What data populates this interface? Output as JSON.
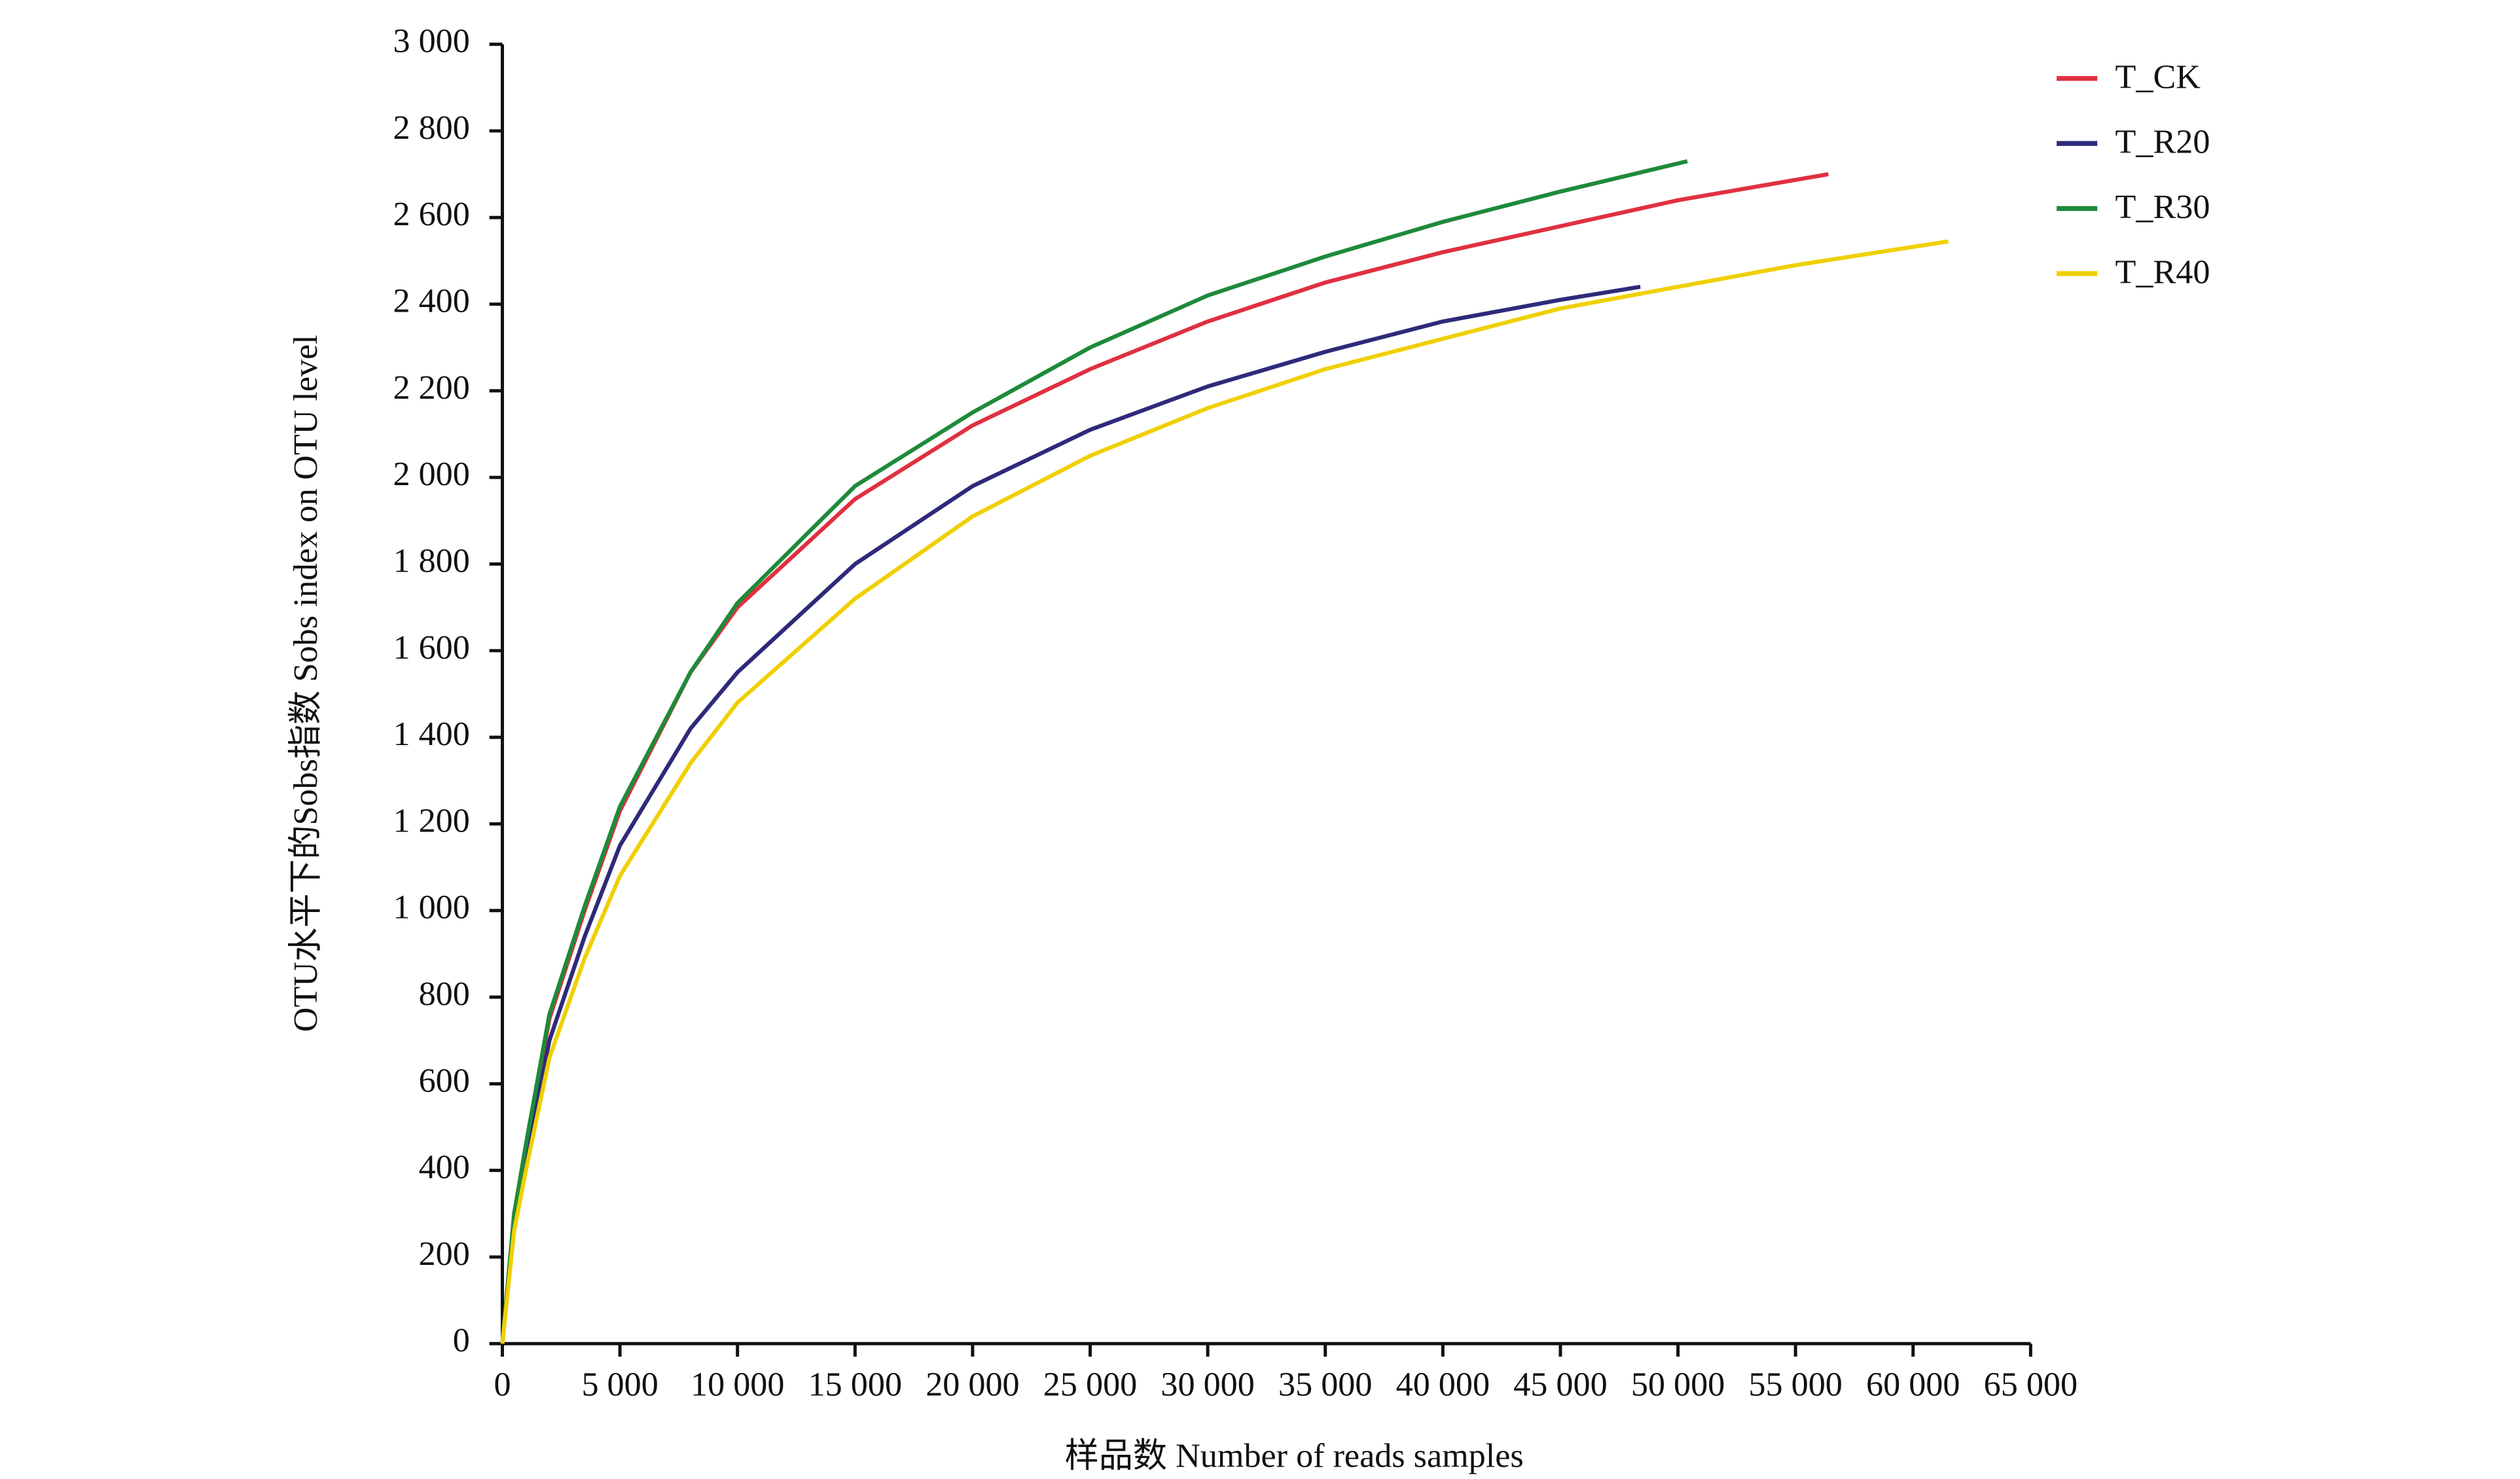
{
  "chart_data": {
    "type": "line",
    "xlabel": "样品数 Number of reads samples",
    "ylabel": "OTU水平下的Sobs指数 Sobs index on OTU level",
    "xlim": [
      0,
      65000
    ],
    "ylim": [
      0,
      3000
    ],
    "xticks": [
      0,
      {
        "value": 5000,
        "label": "5 000"
      },
      {
        "value": 10000,
        "label": "10 000"
      },
      {
        "value": 15000,
        "label": "15 000"
      },
      {
        "value": 20000,
        "label": "20 000"
      },
      {
        "value": 25000,
        "label": "25 000"
      },
      {
        "value": 30000,
        "label": "30 000"
      },
      {
        "value": 35000,
        "label": "35 000"
      },
      {
        "value": 40000,
        "label": "40 000"
      },
      {
        "value": 45000,
        "label": "45 000"
      },
      {
        "value": 50000,
        "label": "50 000"
      },
      {
        "value": 55000,
        "label": "55 000"
      },
      {
        "value": 60000,
        "label": "60 000"
      },
      {
        "value": 65000,
        "label": "65 000"
      }
    ],
    "yticks": [
      0,
      200,
      400,
      600,
      800,
      {
        "value": 1000,
        "label": "1 000"
      },
      {
        "value": 1200,
        "label": "1 200"
      },
      {
        "value": 1400,
        "label": "1 400"
      },
      {
        "value": 1600,
        "label": "1 600"
      },
      {
        "value": 1800,
        "label": "1 800"
      },
      {
        "value": 2000,
        "label": "2 000"
      },
      {
        "value": 2200,
        "label": "2 200"
      },
      {
        "value": 2400,
        "label": "2 400"
      },
      {
        "value": 2600,
        "label": "2 600"
      },
      {
        "value": 2800,
        "label": "2 800"
      },
      {
        "value": 3000,
        "label": "3 000"
      }
    ],
    "legend": "upper right",
    "series": [
      {
        "name": "T_CK",
        "color": "#e03040",
        "x": [
          0,
          500,
          1000,
          2000,
          3500,
          5000,
          8000,
          10000,
          15000,
          20000,
          25000,
          30000,
          35000,
          40000,
          45000,
          50000,
          56400
        ],
        "values": [
          0,
          300,
          450,
          750,
          1000,
          1230,
          1550,
          1700,
          1950,
          2120,
          2250,
          2360,
          2450,
          2520,
          2580,
          2640,
          2700
        ]
      },
      {
        "name": "T_R20",
        "color": "#2e2a7a",
        "x": [
          0,
          500,
          1000,
          2000,
          3500,
          5000,
          8000,
          10000,
          15000,
          20000,
          25000,
          30000,
          35000,
          40000,
          45000,
          48400
        ],
        "values": [
          0,
          280,
          420,
          700,
          940,
          1150,
          1420,
          1550,
          1800,
          1980,
          2110,
          2210,
          2290,
          2360,
          2410,
          2440
        ]
      },
      {
        "name": "T_R30",
        "color": "#1e8a3a",
        "x": [
          0,
          500,
          1000,
          2000,
          3500,
          5000,
          8000,
          10000,
          15000,
          20000,
          25000,
          30000,
          35000,
          40000,
          45000,
          50400
        ],
        "values": [
          0,
          300,
          460,
          760,
          1010,
          1240,
          1550,
          1710,
          1980,
          2150,
          2300,
          2420,
          2510,
          2590,
          2660,
          2730
        ]
      },
      {
        "name": "T_R40",
        "color": "#f0d000",
        "x": [
          0,
          500,
          1000,
          2000,
          3500,
          5000,
          8000,
          10000,
          15000,
          20000,
          25000,
          30000,
          35000,
          40000,
          45000,
          50000,
          55000,
          61500
        ],
        "values": [
          0,
          260,
          400,
          660,
          890,
          1080,
          1340,
          1480,
          1720,
          1910,
          2050,
          2160,
          2250,
          2320,
          2390,
          2440,
          2490,
          2545
        ]
      }
    ]
  }
}
